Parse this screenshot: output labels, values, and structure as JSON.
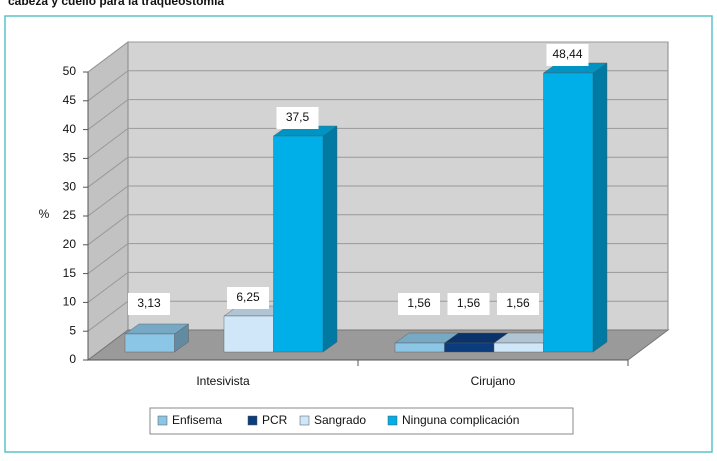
{
  "chart_data": {
    "type": "bar3d",
    "title": "cabeza y cuello para la traqueostomía",
    "y_label": "%",
    "categories": [
      "Intesivista",
      "Cirujano"
    ],
    "series": [
      {
        "name": "Enfisema",
        "color": "#8cc6e6",
        "values": [
          3.13,
          1.56
        ],
        "value_labels": [
          "3,13",
          "1,56"
        ]
      },
      {
        "name": "PCR",
        "color": "#0b3c7d",
        "values": [
          null,
          1.56
        ],
        "value_labels": [
          null,
          "1,56"
        ]
      },
      {
        "name": "Sangrado",
        "color": "#cfe7f8",
        "values": [
          6.25,
          1.56
        ],
        "value_labels": [
          "6,25",
          "1,56"
        ]
      },
      {
        "name": "Ninguna complicación",
        "color": "#00aee8",
        "values": [
          37.5,
          48.44
        ],
        "value_labels": [
          "37,5",
          "48,44"
        ]
      }
    ],
    "ylim": [
      0,
      50
    ],
    "yticks": [
      0,
      5,
      10,
      15,
      20,
      25,
      30,
      35,
      40,
      45,
      50
    ],
    "grid": true
  }
}
